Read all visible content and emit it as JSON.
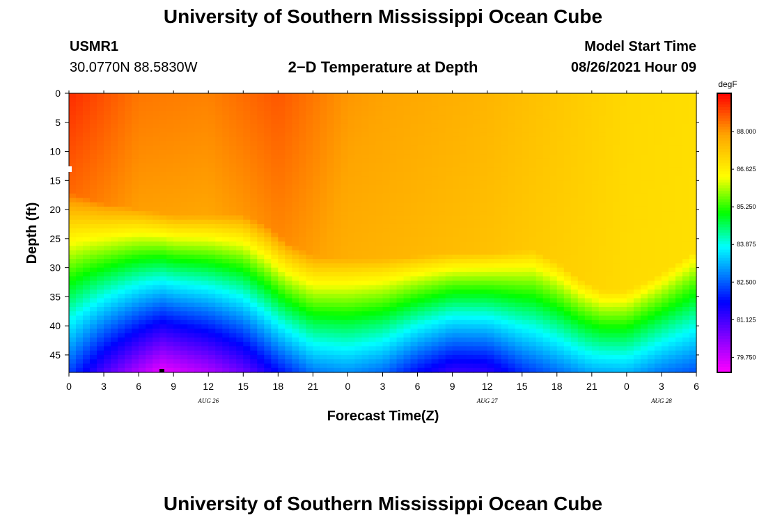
{
  "page": {
    "title_top": "University of Southern Mississippi Ocean Cube",
    "title_bottom": "University of Southern Mississippi Ocean Cube",
    "station_id": "USMR1",
    "coords": "30.0770N  88.5830W",
    "subtitle": "2−D Temperature at Depth",
    "model_start_label": "Model Start Time",
    "model_start_value": "08/26/2021 Hour 09"
  },
  "chart_data": {
    "type": "heatmap",
    "title": "2-D Temperature at Depth",
    "xlabel": "Forecast Time(Z)",
    "ylabel": "Depth (ft)",
    "x_range_hours": [
      0,
      54
    ],
    "y_range_ft": [
      0,
      48
    ],
    "x_tick_labels": [
      "0",
      "3",
      "6",
      "9",
      "12",
      "15",
      "18",
      "21",
      "0",
      "3",
      "6",
      "9",
      "12",
      "15",
      "18",
      "21",
      "0",
      "3",
      "6"
    ],
    "y_tick_labels": [
      "0",
      "5",
      "10",
      "15",
      "20",
      "25",
      "30",
      "35",
      "40",
      "45"
    ],
    "y_tick_values": [
      0,
      5,
      10,
      15,
      20,
      25,
      30,
      35,
      40,
      45
    ],
    "date_labels": [
      {
        "text": "AUG 26",
        "hour": 12
      },
      {
        "text": "AUG 27",
        "hour": 36
      },
      {
        "text": "AUG 28",
        "hour": 51
      }
    ],
    "colorbar": {
      "unit": "degF",
      "min": 79.2,
      "max": 89.4,
      "tick_values": [
        88.0,
        86.625,
        85.25,
        83.875,
        82.5,
        81.125,
        79.75
      ],
      "tick_labels": [
        "88.000",
        "86.625",
        "85.250",
        "83.875",
        "82.500",
        "81.125",
        "79.750"
      ]
    },
    "thermocline_depth_ft_by_hour": [
      {
        "hour": 0,
        "depth": 17
      },
      {
        "hour": 3,
        "depth": 19
      },
      {
        "hour": 6,
        "depth": 20
      },
      {
        "hour": 9,
        "depth": 21
      },
      {
        "hour": 12,
        "depth": 21
      },
      {
        "hour": 15,
        "depth": 21
      },
      {
        "hour": 17,
        "depth": 23
      },
      {
        "hour": 19,
        "depth": 26
      },
      {
        "hour": 21,
        "depth": 28
      },
      {
        "hour": 24,
        "depth": 28.5
      },
      {
        "hour": 27,
        "depth": 28.5
      },
      {
        "hour": 30,
        "depth": 28
      },
      {
        "hour": 33,
        "depth": 27.5
      },
      {
        "hour": 36,
        "depth": 27.5
      },
      {
        "hour": 40,
        "depth": 27
      },
      {
        "hour": 42,
        "depth": 29
      },
      {
        "hour": 44,
        "depth": 32
      },
      {
        "hour": 46,
        "depth": 34
      },
      {
        "hour": 48,
        "depth": 34
      },
      {
        "hour": 51,
        "depth": 31
      },
      {
        "hour": 54,
        "depth": 27
      }
    ],
    "surface_temp_degF_by_hour": [
      {
        "hour": 0,
        "temp": 89.0
      },
      {
        "hour": 6,
        "temp": 88.3
      },
      {
        "hour": 12,
        "temp": 88.2
      },
      {
        "hour": 18,
        "temp": 88.6
      },
      {
        "hour": 24,
        "temp": 88.0
      },
      {
        "hour": 30,
        "temp": 87.8
      },
      {
        "hour": 36,
        "temp": 87.6
      },
      {
        "hour": 42,
        "temp": 87.3
      },
      {
        "hour": 48,
        "temp": 87.0
      },
      {
        "hour": 54,
        "temp": 86.9
      }
    ],
    "bottom_temp_degF_by_hour": [
      {
        "hour": 0,
        "temp": 82.3
      },
      {
        "hour": 3,
        "temp": 81.0
      },
      {
        "hour": 6,
        "temp": 80.0
      },
      {
        "hour": 8,
        "temp": 79.4
      },
      {
        "hour": 12,
        "temp": 80.0
      },
      {
        "hour": 15,
        "temp": 80.7
      },
      {
        "hour": 18,
        "temp": 81.8
      },
      {
        "hour": 21,
        "temp": 82.7
      },
      {
        "hour": 24,
        "temp": 82.9
      },
      {
        "hour": 27,
        "temp": 82.6
      },
      {
        "hour": 30,
        "temp": 81.8
      },
      {
        "hour": 33,
        "temp": 81.2
      },
      {
        "hour": 36,
        "temp": 81.3
      },
      {
        "hour": 39,
        "temp": 82.1
      },
      {
        "hour": 42,
        "temp": 82.6
      },
      {
        "hour": 45,
        "temp": 83.1
      },
      {
        "hour": 48,
        "temp": 83.2
      },
      {
        "hour": 51,
        "temp": 82.7
      },
      {
        "hour": 54,
        "temp": 82.4
      }
    ]
  }
}
